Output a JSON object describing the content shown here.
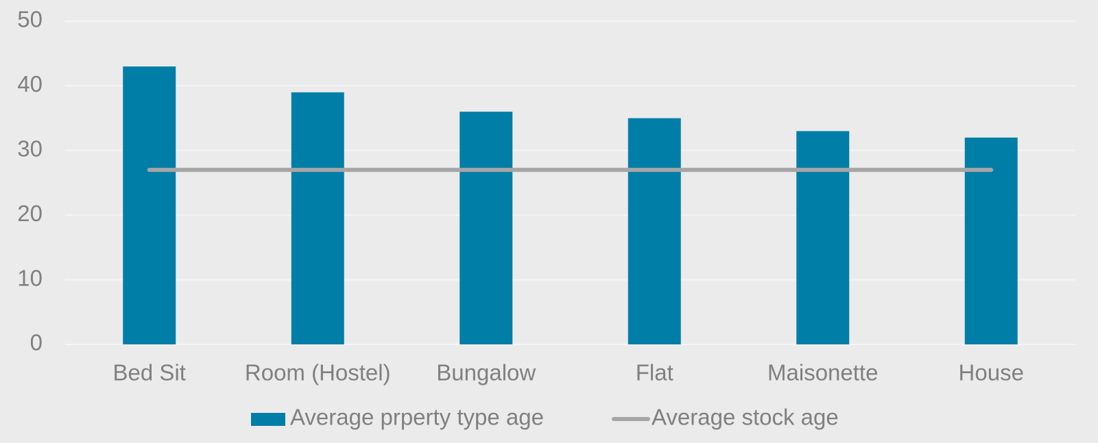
{
  "chart_data": {
    "type": "bar",
    "categories": [
      "Bed Sit",
      "Room (Hostel)",
      "Bungalow",
      "Flat",
      "Maisonette",
      "House"
    ],
    "series": [
      {
        "name": "Average prperty type age",
        "color": "#007ea7",
        "type": "bar",
        "values": [
          43,
          39,
          36,
          35,
          33,
          32
        ]
      },
      {
        "name": "Average stock age",
        "color": "#a6a6a6",
        "type": "line",
        "values": [
          27,
          27,
          27,
          27,
          27,
          27
        ]
      }
    ],
    "ylim": [
      0,
      50
    ],
    "yticks": [
      0,
      10,
      20,
      30,
      40,
      50
    ],
    "grid": true,
    "legend": "bottom"
  }
}
